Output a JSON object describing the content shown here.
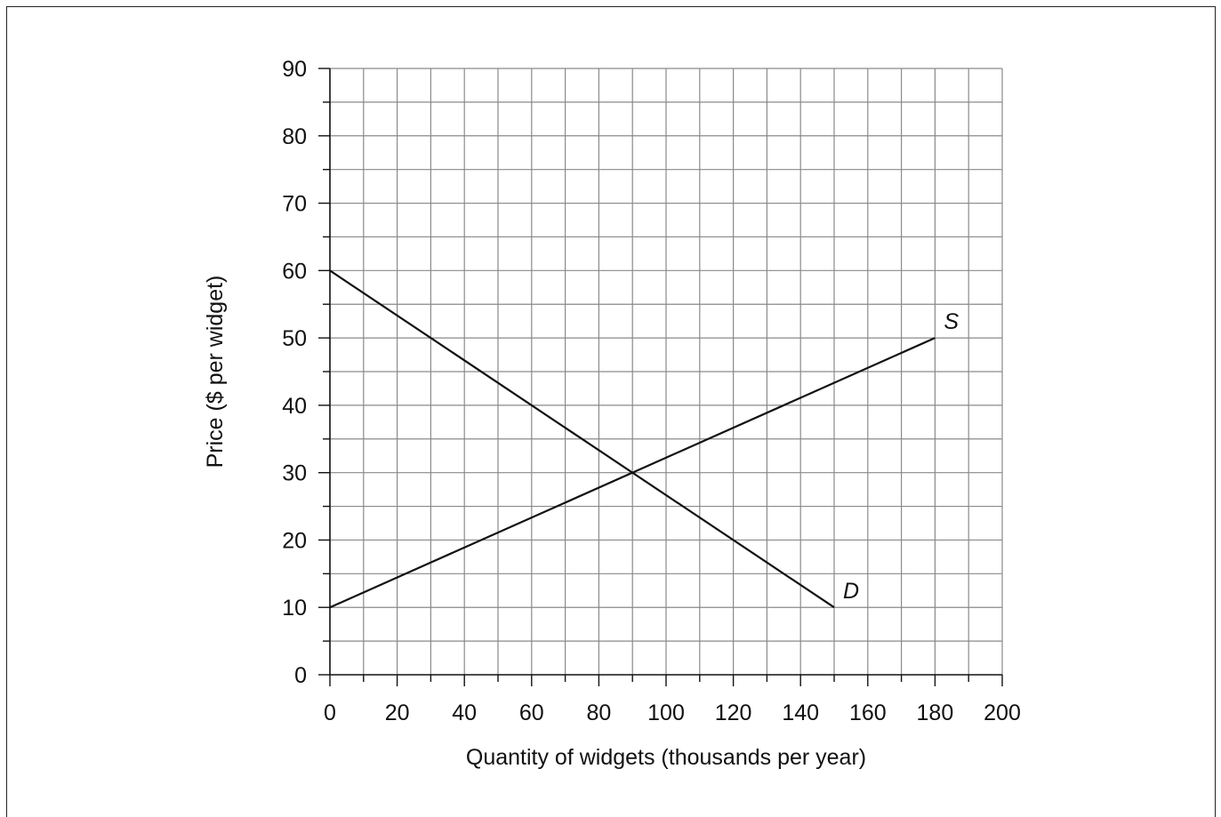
{
  "chart_data": {
    "type": "line",
    "xlabel": "Quantity of widgets (thousands per year)",
    "ylabel": "Price ($ per widget)",
    "xlim": [
      0,
      200
    ],
    "ylim": [
      0,
      90
    ],
    "x_major_ticks": [
      0,
      20,
      40,
      60,
      80,
      100,
      120,
      140,
      160,
      180,
      200
    ],
    "y_major_ticks": [
      0,
      10,
      20,
      30,
      40,
      50,
      60,
      70,
      80,
      90
    ],
    "x_tick_labels": [
      "0",
      "20",
      "40",
      "60",
      "80",
      "100",
      "120",
      "140",
      "160",
      "180",
      "200"
    ],
    "y_tick_labels": [
      "0",
      "10",
      "20",
      "30",
      "40",
      "50",
      "60",
      "70",
      "80",
      "90"
    ],
    "x_minor_step": 10,
    "y_minor_step": 5,
    "grid": true,
    "series": [
      {
        "name": "S",
        "points": [
          [
            0,
            10
          ],
          [
            180,
            50
          ]
        ]
      },
      {
        "name": "D",
        "points": [
          [
            0,
            60
          ],
          [
            150,
            10
          ]
        ]
      }
    ]
  }
}
